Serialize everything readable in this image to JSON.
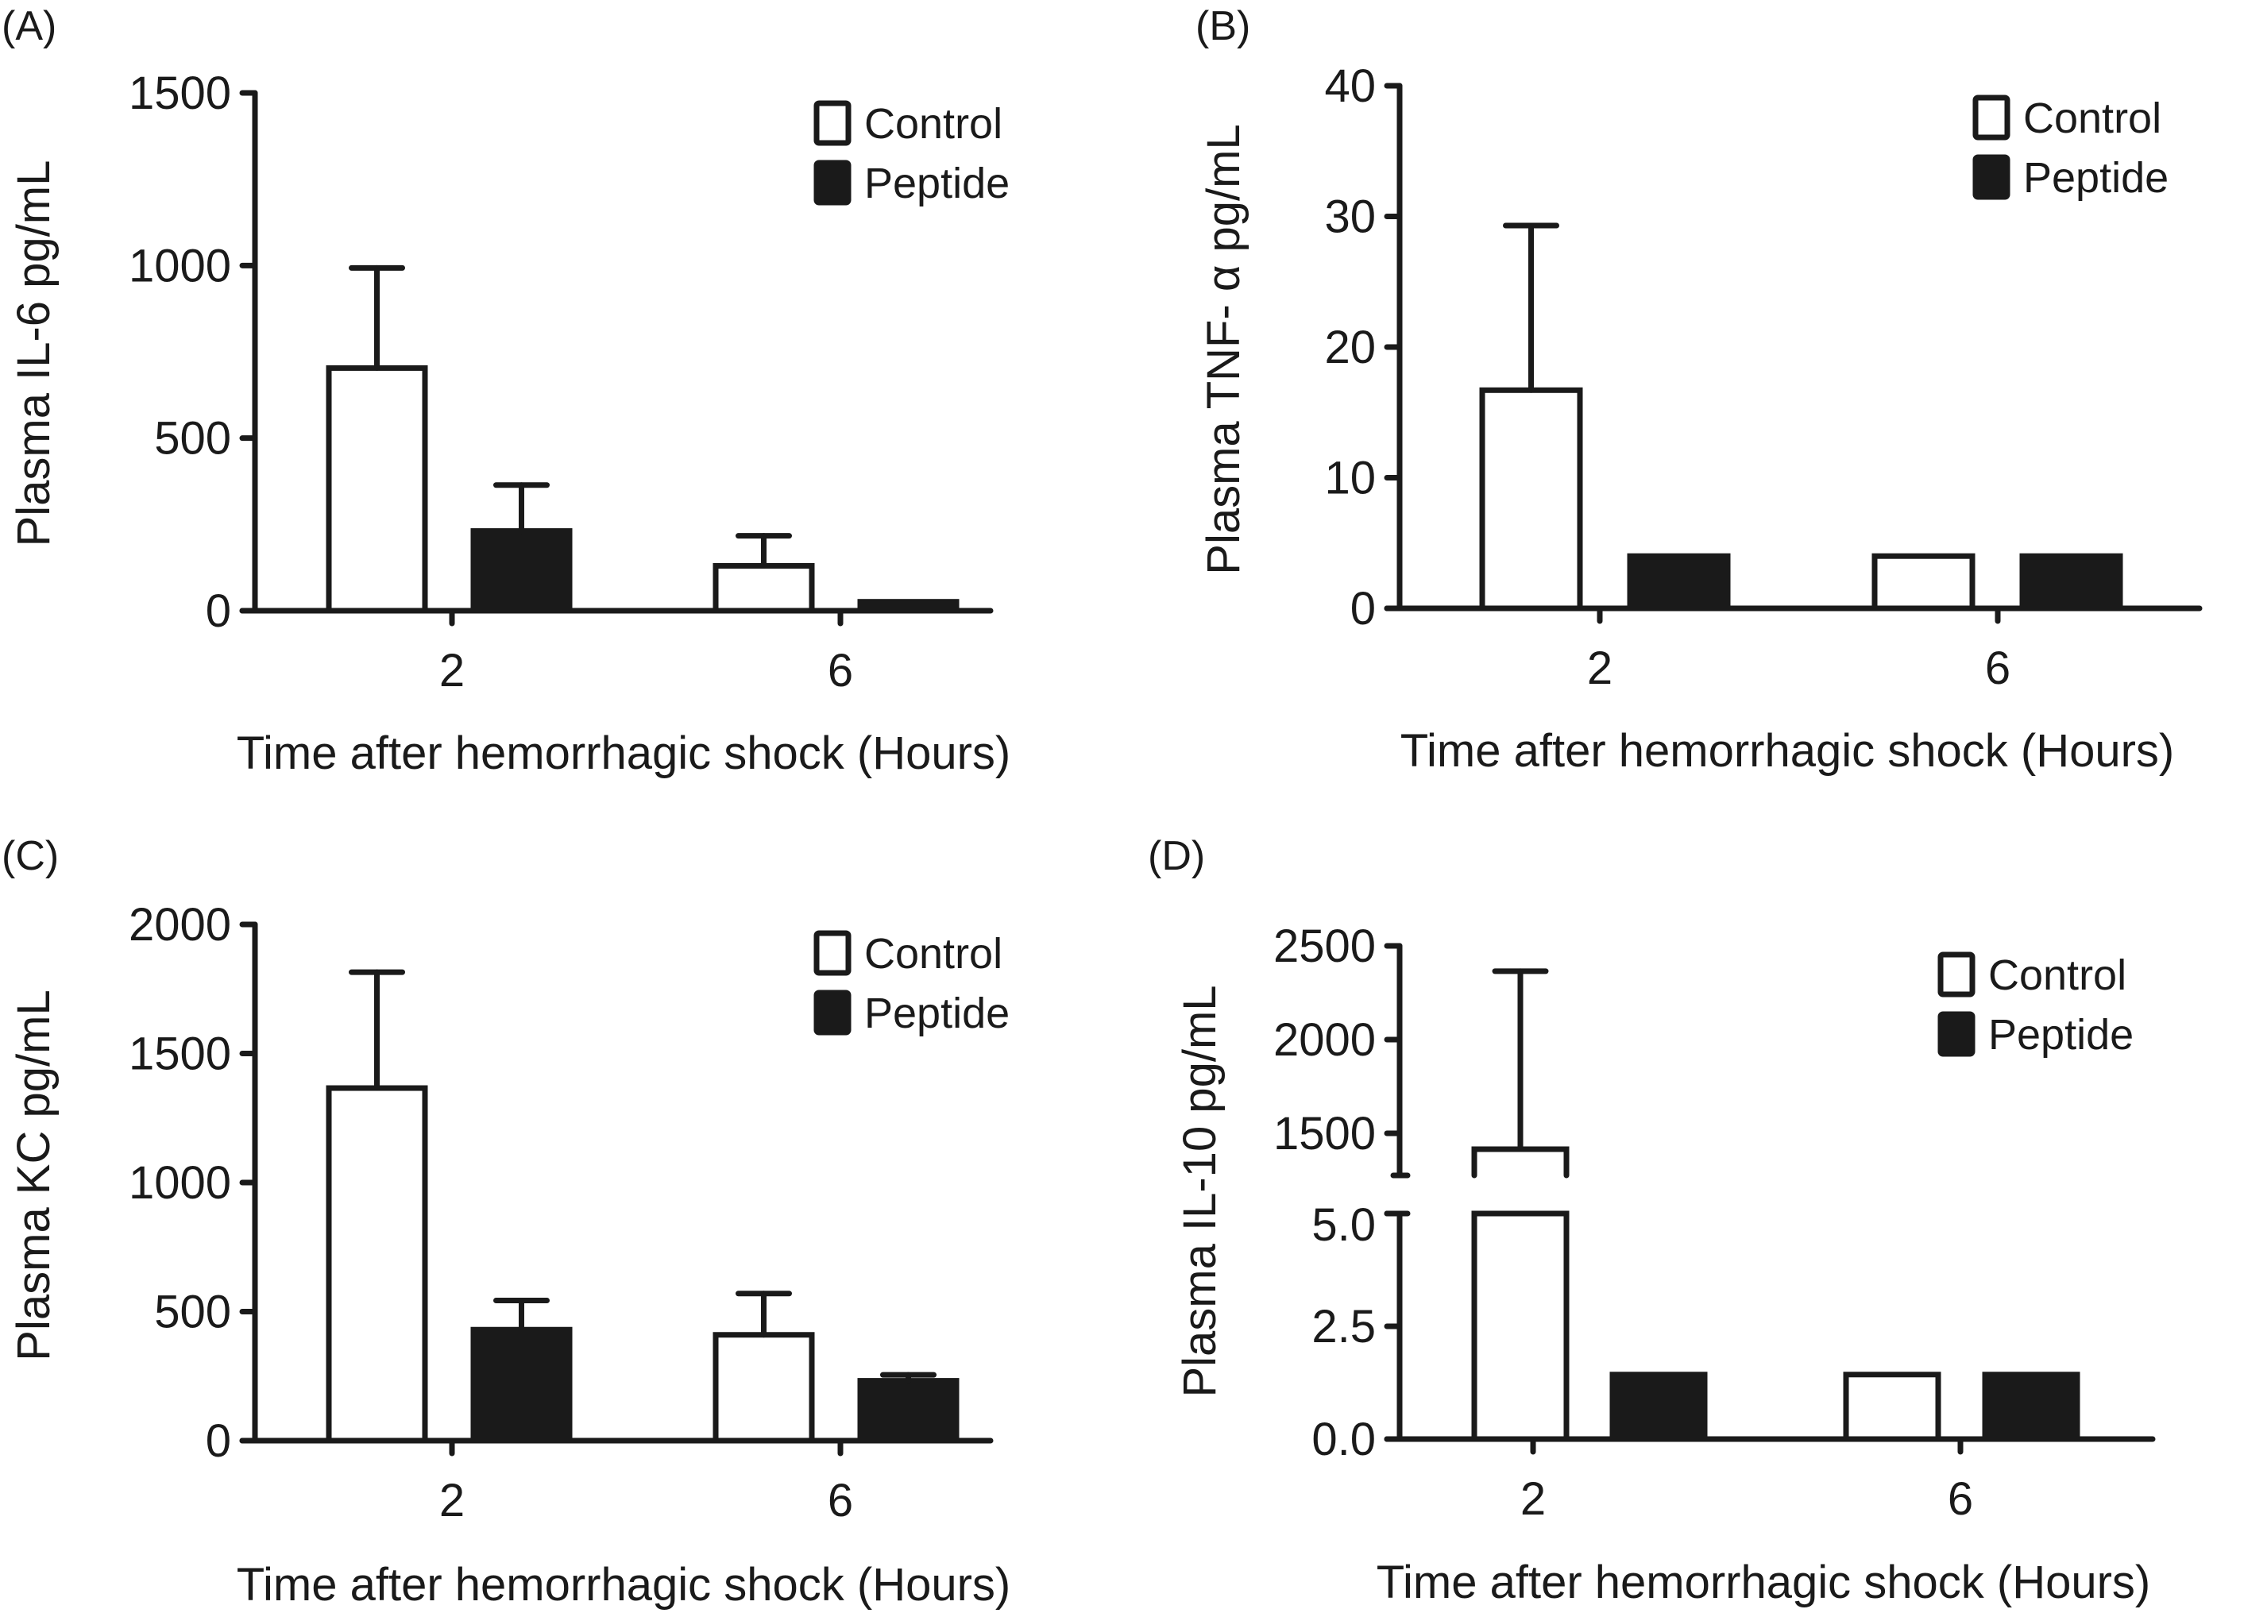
{
  "figure": {
    "panel_labels": [
      "(A)",
      "(B)",
      "(C)",
      "(D)"
    ]
  },
  "chart_data": [
    {
      "panel": "(A)",
      "type": "bar",
      "title": "",
      "xlabel": "Time after hemorrhagic shock (Hours)",
      "ylabel": "Plasma IL-6 pg/mL",
      "categories": [
        "2",
        "6"
      ],
      "ylim": [
        0,
        1500
      ],
      "yticks": [
        0,
        500,
        1000,
        1500
      ],
      "ytick_labels": [
        "0",
        "500",
        "1000",
        "1500"
      ],
      "legend": {
        "position": "top-right",
        "entries": [
          "Control",
          "Peptide"
        ]
      },
      "series": [
        {
          "name": "Control",
          "fill": "#ffffff",
          "values": [
            703,
            130
          ],
          "error_upper": [
            993,
            217
          ]
        },
        {
          "name": "Peptide",
          "fill": "#1a1a1a",
          "values": [
            231,
            26
          ],
          "error_upper": [
            364,
            null
          ]
        }
      ],
      "grid": false
    },
    {
      "panel": "(B)",
      "type": "bar",
      "title": "",
      "xlabel": "Time after hemorrhagic shock (Hours)",
      "ylabel": "Plasma TNF- α pg/mL",
      "categories": [
        "2",
        "6"
      ],
      "ylim": [
        0,
        40
      ],
      "yticks": [
        0,
        10,
        20,
        30,
        40
      ],
      "ytick_labels": [
        "0",
        "10",
        "20",
        "30",
        "40"
      ],
      "legend": {
        "position": "top-right",
        "entries": [
          "Control",
          "Peptide"
        ]
      },
      "series": [
        {
          "name": "Control",
          "fill": "#ffffff",
          "values": [
            16.7,
            4.0
          ],
          "error_upper": [
            29.3,
            null
          ]
        },
        {
          "name": "Peptide",
          "fill": "#1a1a1a",
          "values": [
            4.0,
            4.0
          ],
          "error_upper": [
            null,
            null
          ]
        }
      ],
      "grid": false
    },
    {
      "panel": "(C)",
      "type": "bar",
      "title": "",
      "xlabel": "Time after hemorrhagic shock (Hours)",
      "ylabel": "Plasma KC pg/mL",
      "categories": [
        "2",
        "6"
      ],
      "ylim": [
        0,
        2000
      ],
      "yticks": [
        0,
        500,
        1000,
        1500,
        2000
      ],
      "ytick_labels": [
        "0",
        "500",
        "1000",
        "1500",
        "2000"
      ],
      "legend": {
        "position": "top-right",
        "entries": [
          "Control",
          "Peptide"
        ]
      },
      "series": [
        {
          "name": "Control",
          "fill": "#ffffff",
          "values": [
            1366,
            410
          ],
          "error_upper": [
            1815,
            570
          ]
        },
        {
          "name": "Peptide",
          "fill": "#1a1a1a",
          "values": [
            430,
            232
          ],
          "error_upper": [
            543,
            255
          ]
        }
      ],
      "grid": false
    },
    {
      "panel": "(D)",
      "type": "bar",
      "title": "",
      "xlabel": "Time after hemorrhagic shock (Hours)",
      "ylabel": "Plasma IL-10 pg/mL",
      "categories": [
        "2",
        "6"
      ],
      "broken_axis": true,
      "ylim_lower": [
        0,
        5.0
      ],
      "ylim_upper": [
        1300,
        2500
      ],
      "yticks_lower": [
        0,
        2.5,
        5.0
      ],
      "ytick_labels_lower": [
        "0.0",
        "2.5",
        "5.0"
      ],
      "yticks_upper": [
        1500,
        2000,
        2500
      ],
      "ytick_labels_upper": [
        "1500",
        "2000",
        "2500"
      ],
      "legend": {
        "position": "top-right",
        "entries": [
          "Control",
          "Peptide"
        ]
      },
      "series": [
        {
          "name": "Control",
          "fill": "#ffffff",
          "values": [
            1415,
            1.43
          ],
          "error_upper": [
            2365,
            null
          ]
        },
        {
          "name": "Peptide",
          "fill": "#1a1a1a",
          "values": [
            1.43,
            1.43
          ],
          "error_upper": [
            null,
            null
          ]
        }
      ],
      "grid": false
    }
  ]
}
